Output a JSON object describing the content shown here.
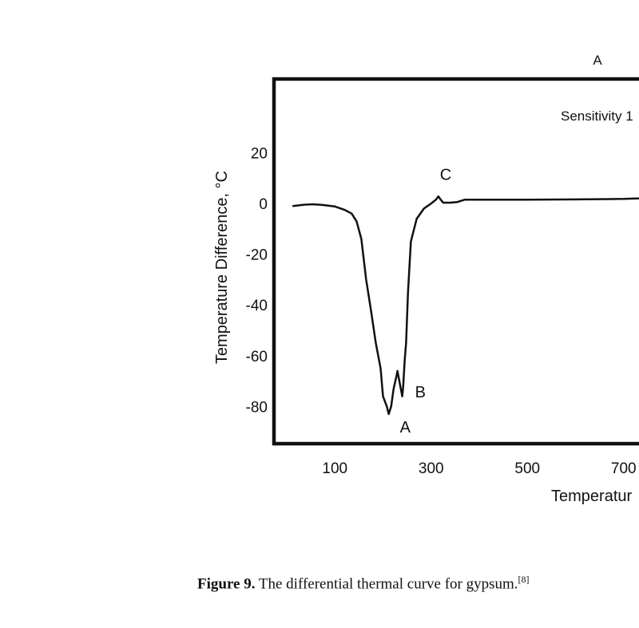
{
  "chart_data": {
    "type": "line",
    "panel_label": "A",
    "sensitivity_text": "Sensitivity 1",
    "xlabel": "Temperatur",
    "ylabel": "Temperature Difference, °C",
    "x_ticks": [
      100,
      300,
      500,
      700
    ],
    "y_ticks": [
      20,
      0,
      -20,
      -40,
      -60,
      -80
    ],
    "xlim": [
      0,
      800
    ],
    "ylim": [
      -94,
      50
    ],
    "grid": false,
    "series": [
      {
        "points": [
          [
            12,
            -1
          ],
          [
            35,
            -0.5
          ],
          [
            55,
            -0.3
          ],
          [
            75,
            -0.6
          ],
          [
            100,
            -1.2
          ],
          [
            120,
            -2.5
          ],
          [
            135,
            -4
          ],
          [
            145,
            -7
          ],
          [
            155,
            -14
          ],
          [
            165,
            -30
          ],
          [
            175,
            -42
          ],
          [
            185,
            -55
          ],
          [
            195,
            -65
          ],
          [
            200,
            -76
          ],
          [
            208,
            -80
          ],
          [
            212,
            -83
          ],
          [
            217,
            -80
          ],
          [
            222,
            -73
          ],
          [
            228,
            -68
          ],
          [
            230,
            -66
          ],
          [
            233,
            -69
          ],
          [
            236,
            -72
          ],
          [
            238,
            -74
          ],
          [
            240,
            -76
          ],
          [
            242,
            -72
          ],
          [
            245,
            -62
          ],
          [
            248,
            -55
          ],
          [
            252,
            -35
          ],
          [
            258,
            -15
          ],
          [
            270,
            -6
          ],
          [
            285,
            -2
          ],
          [
            300,
            0
          ],
          [
            310,
            1.5
          ],
          [
            315,
            2.8
          ],
          [
            320,
            1.5
          ],
          [
            325,
            0.3
          ],
          [
            340,
            0.3
          ],
          [
            355,
            0.6
          ],
          [
            370,
            1.5
          ],
          [
            400,
            1.5
          ],
          [
            500,
            1.5
          ],
          [
            600,
            1.6
          ],
          [
            700,
            1.8
          ],
          [
            800,
            2
          ]
        ]
      }
    ],
    "annotations": [
      {
        "label": "A",
        "x": 225,
        "y": -84
      },
      {
        "label": "B",
        "x": 250,
        "y": -72
      },
      {
        "label": "C",
        "x": 315,
        "y": 3
      }
    ]
  },
  "caption": {
    "bold": "Figure 9.",
    "text": " The differential thermal curve for gypsum.",
    "ref": "[8]"
  }
}
